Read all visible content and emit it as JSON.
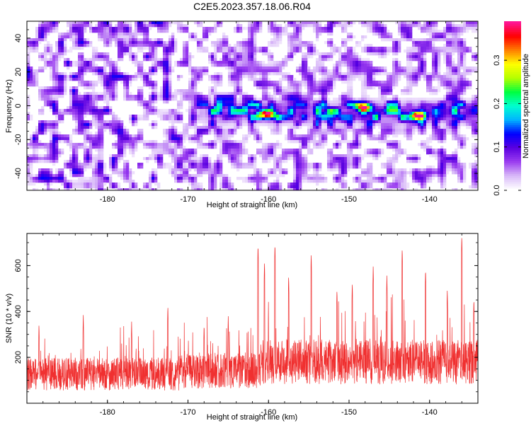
{
  "title": "C2E5.2023.357.18.06.R04",
  "chart_data": [
    {
      "type": "heatmap",
      "xlabel": "Height of straight line (km)",
      "ylabel": "Frequency (Hz)",
      "colorbar_label": "Normalized spectral amplitude",
      "xlim": [
        -190,
        -134
      ],
      "ylim": [
        -50,
        50
      ],
      "x_ticks": [
        -180,
        -170,
        -160,
        -150,
        -140
      ],
      "y_ticks": [
        -40,
        -20,
        0,
        20,
        40
      ],
      "colorbar_range": [
        0,
        0.39
      ],
      "colorbar_ticks": [
        0.0,
        0.1,
        0.2,
        0.3
      ],
      "colormap": [
        "#ffffff",
        "#d8b8f8",
        "#9a3cf0",
        "#5a00e0",
        "#0000ff",
        "#00b4ff",
        "#00ffd0",
        "#00ff40",
        "#b4ff00",
        "#ffff00",
        "#ff8000",
        "#ff0000",
        "#ff1493"
      ],
      "signal_band": {
        "x_start": -170,
        "x_end": -134,
        "center_hz": -3,
        "half_width_hz": 7
      },
      "notable_peaks": [
        {
          "x": -160.5,
          "y": -4,
          "value": 0.36
        },
        {
          "x": -148.5,
          "y": 0,
          "value": 0.33
        },
        {
          "x": -141.8,
          "y": -5,
          "value": 0.34
        }
      ],
      "grid": false,
      "legend": "colorbar-right"
    },
    {
      "type": "line",
      "xlabel": "Height of straight line (km)",
      "ylabel": "SNR (10 * v/v)",
      "xlim": [
        -190,
        -134
      ],
      "ylim": [
        0,
        740
      ],
      "x_ticks": [
        -180,
        -170,
        -160,
        -150,
        -140
      ],
      "y_ticks": [
        200,
        400,
        600
      ],
      "series": [
        {
          "color": "#f03030",
          "segments": [
            {
              "x_start": -190,
              "x_end": -171,
              "baseline": 120,
              "spread": 110
            },
            {
              "x_start": -171,
              "x_end": -161,
              "baseline": 135,
              "spread": 120
            },
            {
              "x_start": -161,
              "x_end": -134,
              "baseline": 170,
              "spread": 150
            }
          ],
          "peaks": [
            {
              "x": -188.5,
              "y": 350
            },
            {
              "x": -183.0,
              "y": 390
            },
            {
              "x": -177.0,
              "y": 360
            },
            {
              "x": -172.5,
              "y": 430
            },
            {
              "x": -168.0,
              "y": 350
            },
            {
              "x": -165.0,
              "y": 380
            },
            {
              "x": -161.3,
              "y": 695
            },
            {
              "x": -160.5,
              "y": 620
            },
            {
              "x": -159.2,
              "y": 700
            },
            {
              "x": -157.5,
              "y": 560
            },
            {
              "x": -154.7,
              "y": 655
            },
            {
              "x": -151.5,
              "y": 500
            },
            {
              "x": -149.6,
              "y": 530
            },
            {
              "x": -147.0,
              "y": 600
            },
            {
              "x": -145.3,
              "y": 560
            },
            {
              "x": -143.4,
              "y": 680
            },
            {
              "x": -140.5,
              "y": 590
            },
            {
              "x": -137.8,
              "y": 500
            },
            {
              "x": -136.0,
              "y": 735
            },
            {
              "x": -134.5,
              "y": 460
            }
          ]
        }
      ],
      "grid": false
    }
  ]
}
